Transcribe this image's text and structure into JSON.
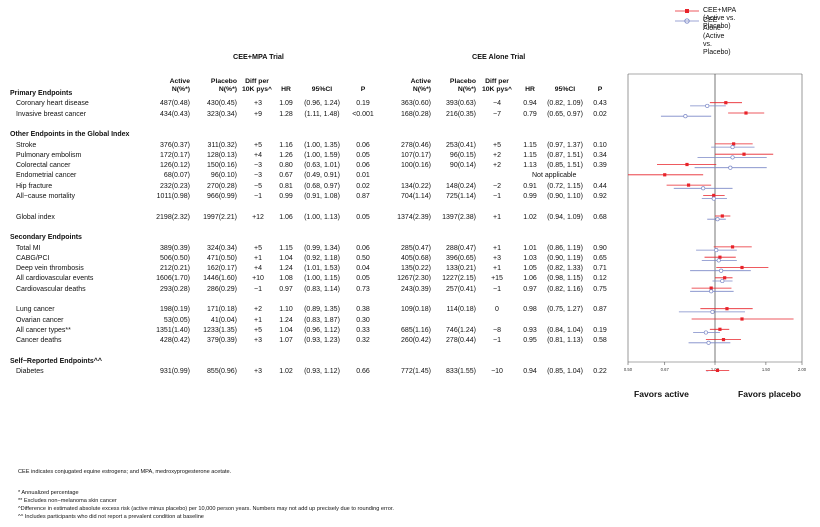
{
  "legend": [
    {
      "label": "CEE+MPA (Active vs. Placebo)",
      "color": "#e8232a",
      "marker": "square"
    },
    {
      "label": "CEE Alone (Active vs. Placebo)",
      "color": "#7b88c7",
      "marker": "circle"
    }
  ],
  "trials": {
    "a": {
      "title": "CEE+MPA Trial"
    },
    "b": {
      "title": "CEE Alone Trial"
    }
  },
  "headers": {
    "active": "Active",
    "active2": "N(%*)",
    "placebo": "Placebo",
    "placebo2": "N(%*)",
    "diff": "Diff per",
    "diff2": "10K pys^",
    "hr": "HR",
    "ci": "95%CI",
    "p": "P"
  },
  "rows": [
    {
      "type": "section",
      "label": "Primary Endpoints"
    },
    {
      "type": "data",
      "label": "Coronary heart disease",
      "a_active": "487(0.48)",
      "a_placebo": "430(0.45)",
      "a_diff": "+3",
      "a_hr": "1.09",
      "a_ci": "(0.96, 1.24)",
      "a_p": "0.19",
      "b_active": "363(0.60)",
      "b_placebo": "393(0.63)",
      "b_diff": "−4",
      "b_hr": "0.94",
      "b_ci": "(0.82, 1.09)",
      "b_p": "0.43",
      "b_note": ""
    },
    {
      "type": "data",
      "label": "Invasive breast cancer",
      "a_active": "434(0.43)",
      "a_placebo": "323(0.34)",
      "a_diff": "+9",
      "a_hr": "1.28",
      "a_ci": "(1.11, 1.48)",
      "a_p": "<0.001",
      "b_active": "168(0.28)",
      "b_placebo": "216(0.35)",
      "b_diff": "−7",
      "b_hr": "0.79",
      "b_ci": "(0.65, 0.97)",
      "b_p": "0.02",
      "b_note": ""
    },
    {
      "type": "gap"
    },
    {
      "type": "section",
      "label": "Other Endpoints in the Global Index"
    },
    {
      "type": "data",
      "label": "Stroke",
      "a_active": "376(0.37)",
      "a_placebo": "311(0.32)",
      "a_diff": "+5",
      "a_hr": "1.16",
      "a_ci": "(1.00, 1.35)",
      "a_p": "0.06",
      "b_active": "278(0.46)",
      "b_placebo": "253(0.41)",
      "b_diff": "+5",
      "b_hr": "1.15",
      "b_ci": "(0.97, 1.37)",
      "b_p": "0.10",
      "b_note": ""
    },
    {
      "type": "data",
      "label": "Pulmonary embolism",
      "a_active": "172(0.17)",
      "a_placebo": "128(0.13)",
      "a_diff": "+4",
      "a_hr": "1.26",
      "a_ci": "(1.00, 1.59)",
      "a_p": "0.05",
      "b_active": "107(0.17)",
      "b_placebo": "96(0.15)",
      "b_diff": "+2",
      "b_hr": "1.15",
      "b_ci": "(0.87, 1.51)",
      "b_p": "0.34",
      "b_note": ""
    },
    {
      "type": "data",
      "label": "Colorectal cancer",
      "a_active": "126(0.12)",
      "a_placebo": "150(0.16)",
      "a_diff": "−3",
      "a_hr": "0.80",
      "a_ci": "(0.63, 1.01)",
      "a_p": "0.06",
      "b_active": "100(0.16)",
      "b_placebo": "90(0.14)",
      "b_diff": "+2",
      "b_hr": "1.13",
      "b_ci": "(0.85, 1.51)",
      "b_p": "0.39",
      "b_note": ""
    },
    {
      "type": "data",
      "label": "Endometrial cancer",
      "a_active": "68(0.07)",
      "a_placebo": "96(0.10)",
      "a_diff": "−3",
      "a_hr": "0.67",
      "a_ci": "(0.49, 0.91)",
      "a_p": "0.01",
      "b_active": "",
      "b_placebo": "",
      "b_diff": "",
      "b_hr": "",
      "b_ci": "",
      "b_p": "",
      "b_note": "Not applicable"
    },
    {
      "type": "data",
      "label": "Hip fracture",
      "a_active": "232(0.23)",
      "a_placebo": "270(0.28)",
      "a_diff": "−5",
      "a_hr": "0.81",
      "a_ci": "(0.68, 0.97)",
      "a_p": "0.02",
      "b_active": "134(0.22)",
      "b_placebo": "148(0.24)",
      "b_diff": "−2",
      "b_hr": "0.91",
      "b_ci": "(0.72, 1.15)",
      "b_p": "0.44",
      "b_note": ""
    },
    {
      "type": "data",
      "label": "All−cause mortality",
      "a_active": "1011(0.98)",
      "a_placebo": "966(0.99)",
      "a_diff": "−1",
      "a_hr": "0.99",
      "a_ci": "(0.91, 1.08)",
      "a_p": "0.87",
      "b_active": "704(1.14)",
      "b_placebo": "725(1.14)",
      "b_diff": "−1",
      "b_hr": "0.99",
      "b_ci": "(0.90, 1.10)",
      "b_p": "0.92",
      "b_note": ""
    },
    {
      "type": "gap"
    },
    {
      "type": "data",
      "label": "Global index",
      "a_active": "2198(2.32)",
      "a_placebo": "1997(2.21)",
      "a_diff": "+12",
      "a_hr": "1.06",
      "a_ci": "(1.00, 1.13)",
      "a_p": "0.05",
      "b_active": "1374(2.39)",
      "b_placebo": "1397(2.38)",
      "b_diff": "+1",
      "b_hr": "1.02",
      "b_ci": "(0.94, 1.09)",
      "b_p": "0.68",
      "b_note": ""
    },
    {
      "type": "gap"
    },
    {
      "type": "section",
      "label": "Secondary Endpoints"
    },
    {
      "type": "data",
      "label": "Total MI",
      "a_active": "389(0.39)",
      "a_placebo": "324(0.34)",
      "a_diff": "+5",
      "a_hr": "1.15",
      "a_ci": "(0.99, 1.34)",
      "a_p": "0.06",
      "b_active": "285(0.47)",
      "b_placebo": "288(0.47)",
      "b_diff": "+1",
      "b_hr": "1.01",
      "b_ci": "(0.86, 1.19)",
      "b_p": "0.90",
      "b_note": ""
    },
    {
      "type": "data",
      "label": "CABG/PCI",
      "a_active": "506(0.50)",
      "a_placebo": "471(0.50)",
      "a_diff": "+1",
      "a_hr": "1.04",
      "a_ci": "(0.92, 1.18)",
      "a_p": "0.50",
      "b_active": "405(0.68)",
      "b_placebo": "396(0.65)",
      "b_diff": "+3",
      "b_hr": "1.03",
      "b_ci": "(0.90, 1.19)",
      "b_p": "0.65",
      "b_note": ""
    },
    {
      "type": "data",
      "label": "Deep vein thrombosis",
      "a_active": "212(0.21)",
      "a_placebo": "162(0.17)",
      "a_diff": "+4",
      "a_hr": "1.24",
      "a_ci": "(1.01, 1.53)",
      "a_p": "0.04",
      "b_active": "135(0.22)",
      "b_placebo": "133(0.21)",
      "b_diff": "+1",
      "b_hr": "1.05",
      "b_ci": "(0.82, 1.33)",
      "b_p": "0.71",
      "b_note": ""
    },
    {
      "type": "data",
      "label": "All cardiovascular events",
      "a_active": "1606(1.70)",
      "a_placebo": "1446(1.60)",
      "a_diff": "+10",
      "a_hr": "1.08",
      "a_ci": "(1.00, 1.15)",
      "a_p": "0.05",
      "b_active": "1267(2.30)",
      "b_placebo": "1227(2.15)",
      "b_diff": "+15",
      "b_hr": "1.06",
      "b_ci": "(0.98, 1.15)",
      "b_p": "0.12",
      "b_note": ""
    },
    {
      "type": "data",
      "label": "Cardiovascular deaths",
      "a_active": "293(0.28)",
      "a_placebo": "286(0.29)",
      "a_diff": "−1",
      "a_hr": "0.97",
      "a_ci": "(0.83, 1.14)",
      "a_p": "0.73",
      "b_active": "243(0.39)",
      "b_placebo": "257(0.41)",
      "b_diff": "−1",
      "b_hr": "0.97",
      "b_ci": "(0.82, 1.16)",
      "b_p": "0.75",
      "b_note": ""
    },
    {
      "type": "gap"
    },
    {
      "type": "data",
      "label": "Lung cancer",
      "a_active": "198(0.19)",
      "a_placebo": "171(0.18)",
      "a_diff": "+2",
      "a_hr": "1.10",
      "a_ci": "(0.89, 1.35)",
      "a_p": "0.38",
      "b_active": "109(0.18)",
      "b_placebo": "114(0.18)",
      "b_diff": "0",
      "b_hr": "0.98",
      "b_ci": "(0.75, 1.27)",
      "b_p": "0.87",
      "b_note": ""
    },
    {
      "type": "data",
      "label": "Ovarian cancer",
      "a_active": "53(0.05)",
      "a_placebo": "41(0.04)",
      "a_diff": "+1",
      "a_hr": "1.24",
      "a_ci": "(0.83, 1.87)",
      "a_p": "0.30",
      "b_active": "",
      "b_placebo": "",
      "b_diff": "",
      "b_hr": "",
      "b_ci": "",
      "b_p": "",
      "b_note": ""
    },
    {
      "type": "data",
      "label": "All cancer types**",
      "a_active": "1351(1.40)",
      "a_placebo": "1233(1.35)",
      "a_diff": "+5",
      "a_hr": "1.04",
      "a_ci": "(0.96, 1.12)",
      "a_p": "0.33",
      "b_active": "685(1.16)",
      "b_placebo": "746(1.24)",
      "b_diff": "−8",
      "b_hr": "0.93",
      "b_ci": "(0.84, 1.04)",
      "b_p": "0.19",
      "b_note": ""
    },
    {
      "type": "data",
      "label": "Cancer deaths",
      "a_active": "428(0.42)",
      "a_placebo": "379(0.39)",
      "a_diff": "+3",
      "a_hr": "1.07",
      "a_ci": "(0.93, 1.23)",
      "a_p": "0.32",
      "b_active": "260(0.42)",
      "b_placebo": "278(0.44)",
      "b_diff": "−1",
      "b_hr": "0.95",
      "b_ci": "(0.81, 1.13)",
      "b_p": "0.58",
      "b_note": ""
    },
    {
      "type": "gap"
    },
    {
      "type": "section",
      "label": "Self−Reported Endpoints^^"
    },
    {
      "type": "data",
      "label": "Diabetes",
      "a_active": "931(0.99)",
      "a_placebo": "855(0.96)",
      "a_diff": "+3",
      "a_hr": "1.02",
      "a_ci": "(0.93, 1.12)",
      "a_p": "0.66",
      "b_active": "772(1.45)",
      "b_placebo": "833(1.55)",
      "b_diff": "−10",
      "b_hr": "0.94",
      "b_ci": "(0.85, 1.04)",
      "b_p": "0.22",
      "b_note": ""
    }
  ],
  "chart_data": {
    "type": "scatter",
    "title": "",
    "xlabel": "",
    "ylabel": "",
    "x_scale": "log",
    "xlim": [
      0.5,
      2.0
    ],
    "xticks": [
      "0.50",
      "0.67",
      "1.00",
      "1.50",
      "2.00"
    ],
    "reference_line": 1.0,
    "grid": false,
    "legend_position": "top-right",
    "favors_left": "Favors active",
    "favors_right": "Favors placebo",
    "series": [
      {
        "name": "CEE+MPA (Active vs. Placebo)",
        "color": "#e8232a",
        "marker": "square",
        "points": [
          {
            "row": 1,
            "hr": 1.09,
            "lo": 0.96,
            "hi": 1.24
          },
          {
            "row": 2,
            "hr": 1.28,
            "lo": 1.11,
            "hi": 1.48
          },
          {
            "row": 5,
            "hr": 1.16,
            "lo": 1.0,
            "hi": 1.35
          },
          {
            "row": 6,
            "hr": 1.26,
            "lo": 1.0,
            "hi": 1.59
          },
          {
            "row": 7,
            "hr": 0.8,
            "lo": 0.63,
            "hi": 1.01
          },
          {
            "row": 8,
            "hr": 0.67,
            "lo": 0.49,
            "hi": 0.91
          },
          {
            "row": 9,
            "hr": 0.81,
            "lo": 0.68,
            "hi": 0.97
          },
          {
            "row": 10,
            "hr": 0.99,
            "lo": 0.91,
            "hi": 1.08
          },
          {
            "row": 12,
            "hr": 1.06,
            "lo": 1.0,
            "hi": 1.13
          },
          {
            "row": 15,
            "hr": 1.15,
            "lo": 0.99,
            "hi": 1.34
          },
          {
            "row": 16,
            "hr": 1.04,
            "lo": 0.92,
            "hi": 1.18
          },
          {
            "row": 17,
            "hr": 1.24,
            "lo": 1.01,
            "hi": 1.53
          },
          {
            "row": 18,
            "hr": 1.08,
            "lo": 1.0,
            "hi": 1.15
          },
          {
            "row": 19,
            "hr": 0.97,
            "lo": 0.83,
            "hi": 1.14
          },
          {
            "row": 21,
            "hr": 1.1,
            "lo": 0.89,
            "hi": 1.35
          },
          {
            "row": 22,
            "hr": 1.24,
            "lo": 0.83,
            "hi": 1.87
          },
          {
            "row": 23,
            "hr": 1.04,
            "lo": 0.96,
            "hi": 1.12
          },
          {
            "row": 24,
            "hr": 1.07,
            "lo": 0.93,
            "hi": 1.23
          },
          {
            "row": 27,
            "hr": 1.02,
            "lo": 0.93,
            "hi": 1.12
          }
        ]
      },
      {
        "name": "CEE Alone (Active vs. Placebo)",
        "color": "#7b88c7",
        "marker": "circle",
        "points": [
          {
            "row": 1,
            "hr": 0.94,
            "lo": 0.82,
            "hi": 1.09
          },
          {
            "row": 2,
            "hr": 0.79,
            "lo": 0.65,
            "hi": 0.97
          },
          {
            "row": 5,
            "hr": 1.15,
            "lo": 0.97,
            "hi": 1.37
          },
          {
            "row": 6,
            "hr": 1.15,
            "lo": 0.87,
            "hi": 1.51
          },
          {
            "row": 7,
            "hr": 1.13,
            "lo": 0.85,
            "hi": 1.51
          },
          {
            "row": 9,
            "hr": 0.91,
            "lo": 0.72,
            "hi": 1.15
          },
          {
            "row": 10,
            "hr": 0.99,
            "lo": 0.9,
            "hi": 1.1
          },
          {
            "row": 12,
            "hr": 1.02,
            "lo": 0.94,
            "hi": 1.09
          },
          {
            "row": 15,
            "hr": 1.01,
            "lo": 0.86,
            "hi": 1.19
          },
          {
            "row": 16,
            "hr": 1.03,
            "lo": 0.9,
            "hi": 1.19
          },
          {
            "row": 17,
            "hr": 1.05,
            "lo": 0.82,
            "hi": 1.33
          },
          {
            "row": 18,
            "hr": 1.06,
            "lo": 0.98,
            "hi": 1.15
          },
          {
            "row": 19,
            "hr": 0.97,
            "lo": 0.82,
            "hi": 1.16
          },
          {
            "row": 21,
            "hr": 0.98,
            "lo": 0.75,
            "hi": 1.27
          },
          {
            "row": 23,
            "hr": 0.93,
            "lo": 0.84,
            "hi": 1.04
          },
          {
            "row": 24,
            "hr": 0.95,
            "lo": 0.81,
            "hi": 1.13
          },
          {
            "row": 27,
            "hr": 0.94,
            "lo": 0.85,
            "hi": 1.04
          }
        ]
      }
    ]
  },
  "footnotes": {
    "abbrev": "CEE indicates conjugated equine estrogens; and MPA, medroxyprogesterone acetate.",
    "n1": "* Annualized percentage",
    "n2": "** Excludes non−melanoma skin cancer",
    "n3": "^Difference in estimated absolute excess risk (active minus placebo) per 10,000 person years.  Numbers may not add up precisely due to rounding error.",
    "n4": "^^ Includes participants who did not report a prevalent condition at baseline"
  }
}
